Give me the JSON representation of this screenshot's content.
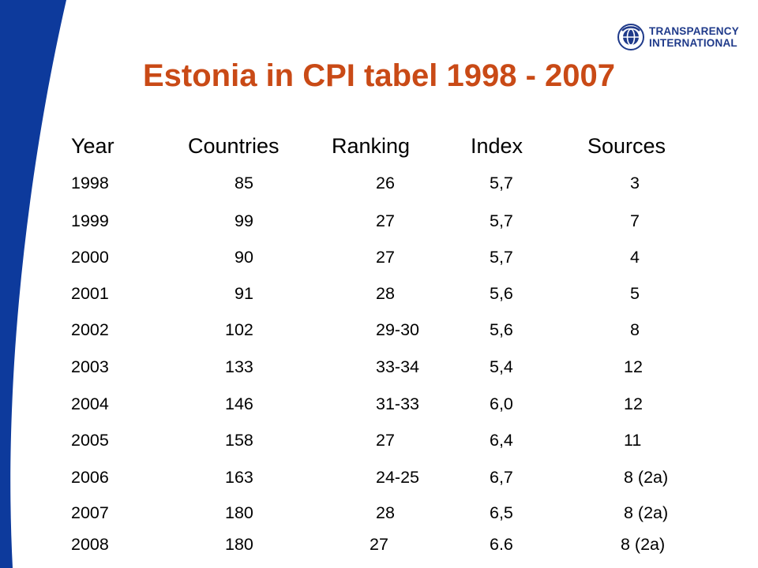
{
  "title": "Estonia in CPI tabel 1998 - 2007",
  "logo": {
    "line1": "TRANSPARENCY",
    "line2": "INTERNATIONAL"
  },
  "colors": {
    "band_blue": "#0d3a9c",
    "title_orange": "#c94a16",
    "logo_blue": "#1f3a8a"
  },
  "table": {
    "headers": [
      "Year",
      "Countries",
      "Ranking",
      "Index",
      "Sources"
    ],
    "rows": [
      [
        "1998",
        "85",
        "26",
        "5,7",
        "3"
      ],
      [
        "1999",
        "99",
        "27",
        "5,7",
        "7"
      ],
      [
        "2000",
        "90",
        "27",
        "5,7",
        "4"
      ],
      [
        "2001",
        "91",
        "28",
        "5,6",
        "5"
      ],
      [
        "2002",
        "102",
        "29-30",
        "5,6",
        "8"
      ],
      [
        "2003",
        "133",
        "33-34",
        "5,4",
        "12"
      ],
      [
        "2004",
        "146",
        "31-33",
        "6,0",
        "12"
      ],
      [
        "2005",
        "158",
        "27",
        "6,4",
        "11"
      ],
      [
        "2006",
        "163",
        "24-25",
        "6,7",
        "8 (2a)"
      ],
      [
        "2007",
        "180",
        "28",
        "6,5",
        "8 (2a)"
      ],
      [
        "2008",
        "180",
        "27",
        "6.6",
        "8 (2a)"
      ]
    ]
  }
}
